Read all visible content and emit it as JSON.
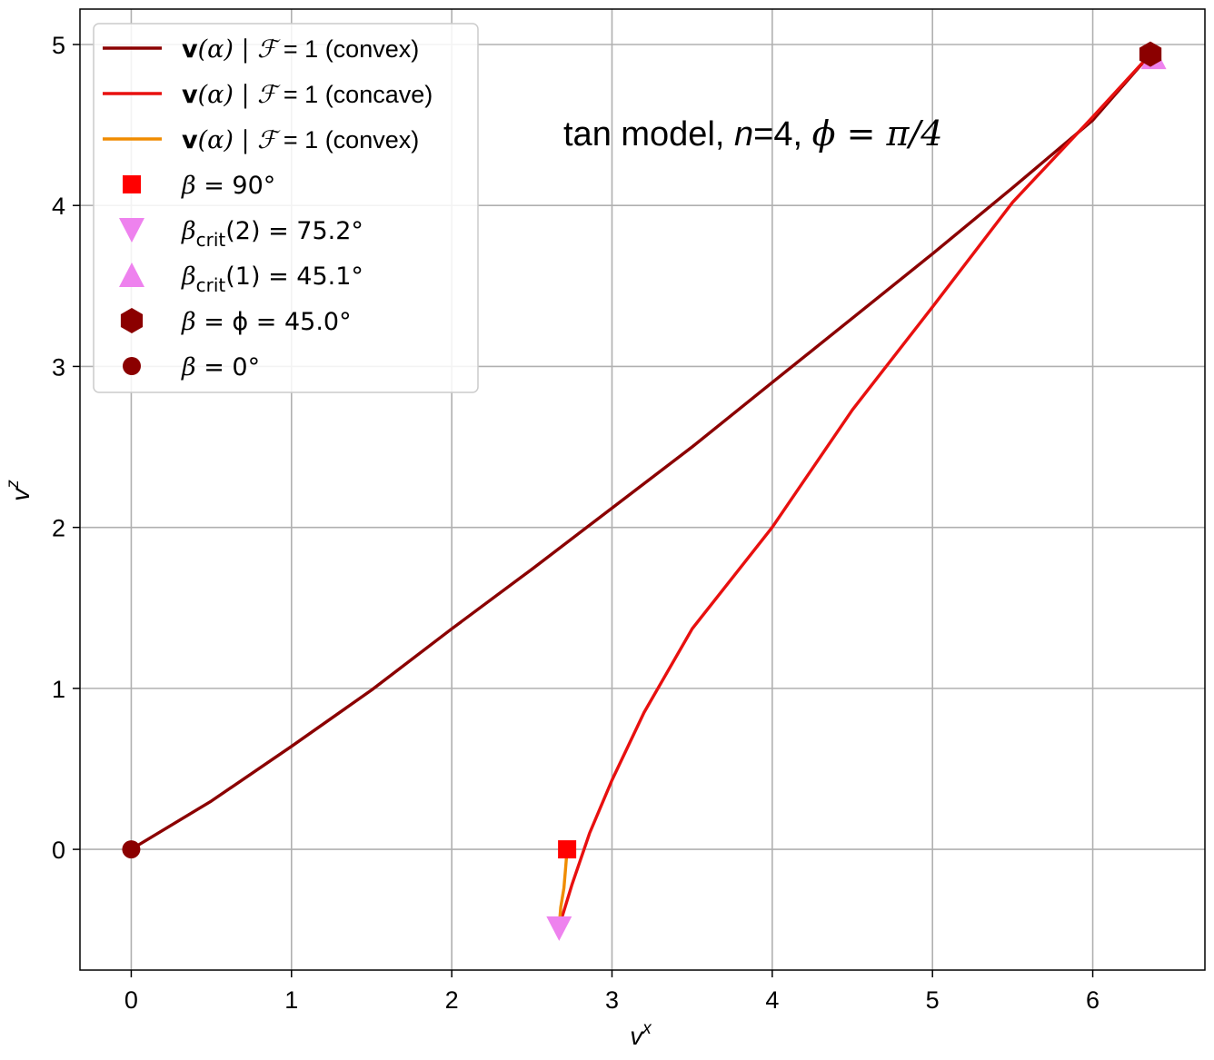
{
  "chart_data": {
    "type": "line",
    "title": "",
    "annotation": {
      "prefix": "tan model, ",
      "n_symbol": "n",
      "n_value": "=4, ",
      "phi_symbol": "ϕ",
      "phi_value": " = π/4"
    },
    "xlabel": {
      "base": "v",
      "sup": "x"
    },
    "ylabel": {
      "base": "v",
      "sup": "z"
    },
    "xlim": [
      -0.32,
      6.7
    ],
    "ylim": [
      -0.75,
      5.22
    ],
    "xticks": [
      "0",
      "1",
      "2",
      "3",
      "4",
      "5",
      "6"
    ],
    "yticks": [
      "0",
      "1",
      "2",
      "3",
      "4",
      "5"
    ],
    "grid": true,
    "legend_position": "upper-left",
    "colors": {
      "dark_red": "#8b0000",
      "red": "#e8100f",
      "orange": "#f08c00",
      "violet": "#ee82ee",
      "square_red": "#ff0000"
    },
    "series": [
      {
        "label_bold": "v",
        "label_math": "(α) | ",
        "label_script": "ℱ",
        "label_tail": " = 1 (convex)",
        "color": "#8b0000",
        "points": [
          [
            0,
            0
          ],
          [
            0.5,
            0.3
          ],
          [
            1,
            0.64
          ],
          [
            1.5,
            0.99
          ],
          [
            2,
            1.37
          ],
          [
            2.5,
            1.74
          ],
          [
            3,
            2.12
          ],
          [
            3.5,
            2.5
          ],
          [
            4,
            2.9
          ],
          [
            4.5,
            3.3
          ],
          [
            5,
            3.7
          ],
          [
            5.5,
            4.11
          ],
          [
            6,
            4.53
          ],
          [
            6.36,
            4.94
          ]
        ]
      },
      {
        "label_bold": "v",
        "label_math": "(α) | ",
        "label_script": "ℱ",
        "label_tail": " = 1 (concave)",
        "color": "#e8100f",
        "points": [
          [
            2.67,
            -0.48
          ],
          [
            2.75,
            -0.22
          ],
          [
            2.86,
            0.1
          ],
          [
            3,
            0.43
          ],
          [
            3.2,
            0.85
          ],
          [
            3.5,
            1.37
          ],
          [
            4,
            2
          ],
          [
            4.5,
            2.73
          ],
          [
            5,
            3.37
          ],
          [
            5.5,
            4.02
          ],
          [
            6,
            4.55
          ],
          [
            6.36,
            4.94
          ]
        ]
      },
      {
        "label_bold": "v",
        "label_math": "(α) | ",
        "label_script": "ℱ",
        "label_tail": " = 1 (convex)",
        "color": "#f08c00",
        "points": [
          [
            2.72,
            0
          ],
          [
            2.71,
            -0.12
          ],
          [
            2.7,
            -0.24
          ],
          [
            2.68,
            -0.36
          ],
          [
            2.67,
            -0.48
          ]
        ]
      }
    ],
    "markers": [
      {
        "label_math": "β",
        "label_sub": "",
        "label_tail": " = 90°",
        "shape": "square",
        "color": "#ff0000",
        "x": 2.72,
        "y": 0
      },
      {
        "label_math": "β",
        "label_sub": "crit",
        "label_tail": "(2) = 75.2°",
        "shape": "triangle-down",
        "color": "#ee82ee",
        "x": 2.67,
        "y": -0.49
      },
      {
        "label_math": "β",
        "label_sub": "crit",
        "label_tail": "(1) = 45.1°",
        "shape": "triangle-up",
        "color": "#ee82ee",
        "x": 6.38,
        "y": 4.92
      },
      {
        "label_math": "β",
        "label_sub": "",
        "label_tail": " = ϕ = 45.0°",
        "shape": "hexagon",
        "color": "#8b0000",
        "x": 6.36,
        "y": 4.94
      },
      {
        "label_math": "β",
        "label_sub": "",
        "label_tail": " = 0°",
        "shape": "circle",
        "color": "#8b0000",
        "x": 0,
        "y": 0
      }
    ]
  }
}
